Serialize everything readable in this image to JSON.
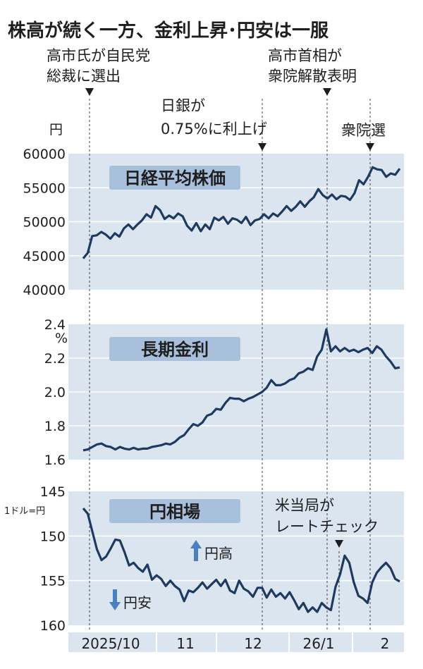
{
  "title": "株高が続く一方、金利上昇･円安は一服",
  "events": [
    {
      "key": "takaichi_president",
      "lines": [
        "高市氏が自民党",
        "総裁に選出"
      ]
    },
    {
      "key": "boj_hike",
      "lines": [
        "日銀が",
        "0.75%に利上げ"
      ]
    },
    {
      "key": "dissolution",
      "lines": [
        "高市首相が",
        "衆院解散表明"
      ]
    },
    {
      "key": "election",
      "lines": [
        "衆院選"
      ]
    },
    {
      "key": "ratecheck",
      "lines": [
        "米当局が",
        "レートチェック"
      ]
    }
  ],
  "x_axis": {
    "ticks": [
      "2025/10",
      "11",
      "12",
      "26/1",
      "2"
    ]
  },
  "colors": {
    "line": "#1f3a60",
    "panel_bg": "#dbe5f0",
    "label_bg": "#a9c0dd",
    "arrow": "#4a7fc0",
    "grid": "#ffffff"
  },
  "chart_data": [
    {
      "type": "line",
      "title": "日経平均株価",
      "unit": "円",
      "ylim": [
        40000,
        60000
      ],
      "yticks": [
        "60000",
        "55000",
        "50000",
        "45000",
        "40000"
      ],
      "series": [
        {
          "values": [
            44600,
            45400,
            47900,
            48000,
            48500,
            48100,
            47500,
            48300,
            47800,
            49000,
            49600,
            48900,
            49600,
            50200,
            51100,
            50600,
            52300,
            51700,
            50400,
            50900,
            50500,
            51200,
            50800,
            49400,
            48700,
            49800,
            48600,
            49600,
            48900,
            50600,
            50200,
            50700,
            49700,
            50500,
            50300,
            49800,
            50700,
            49500,
            50200,
            50400,
            51100,
            50500,
            51200,
            50800,
            51500,
            52300,
            51600,
            52200,
            53000,
            52200,
            53000,
            53600,
            54800,
            53900,
            53400,
            54000,
            53300,
            53800,
            53700,
            53200,
            54200,
            56100,
            55500,
            56600,
            58000,
            57700,
            57600,
            56600,
            57100,
            56900,
            57800
          ]
        }
      ]
    },
    {
      "type": "line",
      "title": "長期金利",
      "unit": "%",
      "ylim": [
        1.6,
        2.4
      ],
      "yticks": [
        "2.4",
        "2.2",
        "2.0",
        "1.8",
        "1.6"
      ],
      "series": [
        {
          "values": [
            1.655,
            1.66,
            1.675,
            1.69,
            1.695,
            1.68,
            1.675,
            1.66,
            1.675,
            1.665,
            1.66,
            1.67,
            1.66,
            1.665,
            1.665,
            1.675,
            1.68,
            1.685,
            1.695,
            1.69,
            1.705,
            1.73,
            1.745,
            1.78,
            1.81,
            1.8,
            1.82,
            1.86,
            1.87,
            1.9,
            1.895,
            1.935,
            1.965,
            1.96,
            1.96,
            1.945,
            1.96,
            1.97,
            1.985,
            2.0,
            2.025,
            2.07,
            2.04,
            2.04,
            2.05,
            2.07,
            2.08,
            2.11,
            2.12,
            2.14,
            2.13,
            2.21,
            2.25,
            2.37,
            2.24,
            2.27,
            2.24,
            2.26,
            2.24,
            2.25,
            2.235,
            2.25,
            2.26,
            2.23,
            2.27,
            2.25,
            2.21,
            2.18,
            2.14,
            2.145
          ]
        }
      ]
    },
    {
      "type": "line",
      "title": "円相場",
      "unit": "1ドル=円",
      "ylim": [
        145,
        160
      ],
      "inverted": true,
      "yticks": [
        "145",
        "150",
        "155",
        "160"
      ],
      "series": [
        {
          "values": [
            146.9,
            147.5,
            149.5,
            151.5,
            152.7,
            152.3,
            151.4,
            150.4,
            150.5,
            151.8,
            153.3,
            153.0,
            153.6,
            154.0,
            153.2,
            154.9,
            154.4,
            154.8,
            155.6,
            155.0,
            155.6,
            156.0,
            157.3,
            156.1,
            156.3,
            155.8,
            155.2,
            155.9,
            155.4,
            154.9,
            155.6,
            154.9,
            156.1,
            156.4,
            155.0,
            155.9,
            156.2,
            156.8,
            155.8,
            155.8,
            156.9,
            156.0,
            156.8,
            156.4,
            157.0,
            156.3,
            157.2,
            158.2,
            157.5,
            158.5,
            158.0,
            158.5,
            157.5,
            158.0,
            158.3,
            155.7,
            154.3,
            152.2,
            153.0,
            155.2,
            156.7,
            157.0,
            157.5,
            155.2,
            154.1,
            153.5,
            153.0,
            153.6,
            154.8,
            155.1
          ]
        }
      ]
    }
  ],
  "yen_labels": {
    "strong": "円高",
    "weak": "円安"
  }
}
